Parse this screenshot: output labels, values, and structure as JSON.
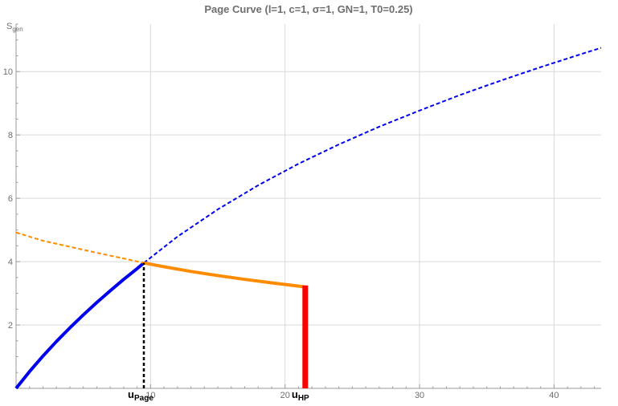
{
  "chart_data": {
    "type": "line",
    "title": "Page Curve (l=1, c=1, σ=1, GN=1, T0=0.25)",
    "ylabel": "S",
    "ylabel_sub": "gen",
    "xlabel": "",
    "xlim": [
      0,
      43.5
    ],
    "ylim": [
      0,
      11.5
    ],
    "grid": true,
    "x_ticks": [
      10,
      20,
      30,
      40
    ],
    "y_ticks": [
      2,
      4,
      6,
      8,
      10
    ],
    "u_page": 9.5,
    "u_hp": 21.5,
    "annotations": [
      {
        "name": "u-page-label",
        "text": "u",
        "sub": "Page",
        "x": 9.5
      },
      {
        "name": "u-hp-label",
        "text": "u",
        "sub": "HP",
        "x": 21.5
      }
    ],
    "series": [
      {
        "style": "solid",
        "color": "#0000ee",
        "x": [
          0,
          1,
          2,
          3,
          4,
          5,
          6,
          7,
          8,
          9,
          9.5
        ],
        "y": [
          0,
          0.53,
          1.02,
          1.48,
          1.91,
          2.32,
          2.71,
          3.08,
          3.44,
          3.78,
          3.96
        ]
      },
      {
        "style": "dashed",
        "color": "#0000ee",
        "x": [
          9.5,
          12,
          15,
          18,
          21,
          24,
          27,
          30,
          33,
          36,
          39,
          42,
          43.5
        ],
        "y": [
          3.96,
          4.79,
          5.65,
          6.41,
          7.09,
          7.7,
          8.26,
          8.77,
          9.26,
          9.71,
          10.14,
          10.55,
          10.75
        ]
      },
      {
        "style": "dashed",
        "color": "#ff8c00",
        "x": [
          0,
          2,
          4,
          6,
          8,
          9.5
        ],
        "y": [
          4.92,
          4.66,
          4.47,
          4.28,
          4.1,
          3.96
        ]
      },
      {
        "style": "solid",
        "color": "#ff8c00",
        "x": [
          9.5,
          11,
          13,
          15,
          17,
          19,
          21.5
        ],
        "y": [
          3.96,
          3.84,
          3.69,
          3.56,
          3.44,
          3.33,
          3.2
        ]
      },
      {
        "style": "dashed",
        "color": "#000000",
        "x": [
          9.5,
          9.5
        ],
        "y": [
          0,
          3.96
        ]
      },
      {
        "style": "solid",
        "color": "#ff0000",
        "x": [
          21.5,
          21.5
        ],
        "y": [
          0,
          3.25
        ]
      }
    ]
  }
}
